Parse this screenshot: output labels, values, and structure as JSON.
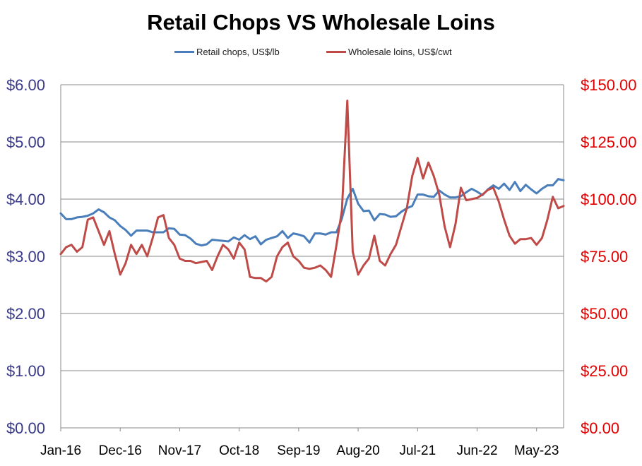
{
  "chart_data": {
    "type": "line",
    "title": "Retail Chops VS Wholesale Loins",
    "xlabel": "",
    "ylabel": "",
    "legend": "top-center",
    "grid": true,
    "x_tick_labels": [
      "Jan-16",
      "Dec-16",
      "Nov-17",
      "Oct-18",
      "Sep-19",
      "Aug-20",
      "Jul-21",
      "Jun-22",
      "May-23"
    ],
    "x_start": "2016-01",
    "x_end": "2023-08",
    "axes": {
      "left": {
        "ylim": [
          0,
          6
        ],
        "ticks": [
          "$0.00",
          "$1.00",
          "$2.00",
          "$3.00",
          "$4.00",
          "$5.00",
          "$6.00"
        ],
        "tick_color": "#3a3a8c"
      },
      "right": {
        "ylim": [
          0,
          150
        ],
        "ticks": [
          "$0.00",
          "$25.00",
          "$50.00",
          "$75.00",
          "$100.00",
          "$125.00",
          "$150.00"
        ],
        "tick_color": "#e00000"
      }
    },
    "series": [
      {
        "name": "Retail chops, US$/lb",
        "axis": "left",
        "color": "#4a7ebb",
        "values": [
          3.75,
          3.65,
          3.65,
          3.68,
          3.69,
          3.71,
          3.75,
          3.82,
          3.77,
          3.68,
          3.63,
          3.53,
          3.46,
          3.36,
          3.45,
          3.45,
          3.45,
          3.42,
          3.42,
          3.42,
          3.49,
          3.48,
          3.38,
          3.37,
          3.31,
          3.22,
          3.19,
          3.21,
          3.29,
          3.28,
          3.27,
          3.26,
          3.33,
          3.29,
          3.37,
          3.3,
          3.35,
          3.21,
          3.29,
          3.32,
          3.35,
          3.44,
          3.32,
          3.4,
          3.38,
          3.35,
          3.24,
          3.4,
          3.4,
          3.38,
          3.42,
          3.42,
          3.66,
          4.01,
          4.18,
          3.92,
          3.79,
          3.8,
          3.63,
          3.74,
          3.73,
          3.69,
          3.7,
          3.78,
          3.84,
          3.88,
          4.08,
          4.08,
          4.05,
          4.04,
          4.15,
          4.08,
          4.03,
          4.03,
          4.05,
          4.12,
          4.18,
          4.13,
          4.07,
          4.17,
          4.24,
          4.18,
          4.27,
          4.16,
          4.3,
          4.14,
          4.25,
          4.17,
          4.1,
          4.18,
          4.24,
          4.24,
          4.35,
          4.33
        ]
      },
      {
        "name": "Wholesale loins, US$/cwt",
        "axis": "right",
        "color": "#be4b48",
        "values": [
          76.0,
          79.0,
          80.0,
          77.0,
          79.0,
          91.0,
          92.0,
          86.0,
          80.0,
          86.0,
          76.0,
          67.0,
          72.0,
          80.0,
          76.0,
          80.0,
          75.0,
          83.0,
          92.0,
          93.0,
          83.0,
          80.0,
          74.0,
          73.0,
          73.0,
          72.0,
          72.5,
          73.0,
          69.0,
          75.0,
          80.0,
          78.0,
          74.0,
          81.0,
          78.0,
          66.0,
          65.5,
          65.5,
          64.0,
          66.0,
          75.0,
          79.0,
          81.0,
          75.0,
          73.0,
          70.0,
          69.5,
          70.0,
          71.0,
          69.0,
          66.0,
          80.0,
          95.0,
          143.0,
          77.0,
          67.0,
          71.0,
          74.0,
          84.0,
          73.0,
          71.0,
          76.0,
          80.0,
          88.0,
          96.0,
          110.0,
          118.0,
          109.0,
          116.0,
          110.0,
          102.0,
          88.0,
          79.0,
          89.0,
          105.0,
          99.5,
          100.0,
          100.5,
          102.0,
          104.0,
          105.0,
          99.0,
          91.0,
          84.0,
          80.5,
          82.5,
          82.5,
          83.0,
          80.0,
          83.0,
          91.0,
          101.0,
          96.0,
          97.0
        ]
      }
    ]
  }
}
